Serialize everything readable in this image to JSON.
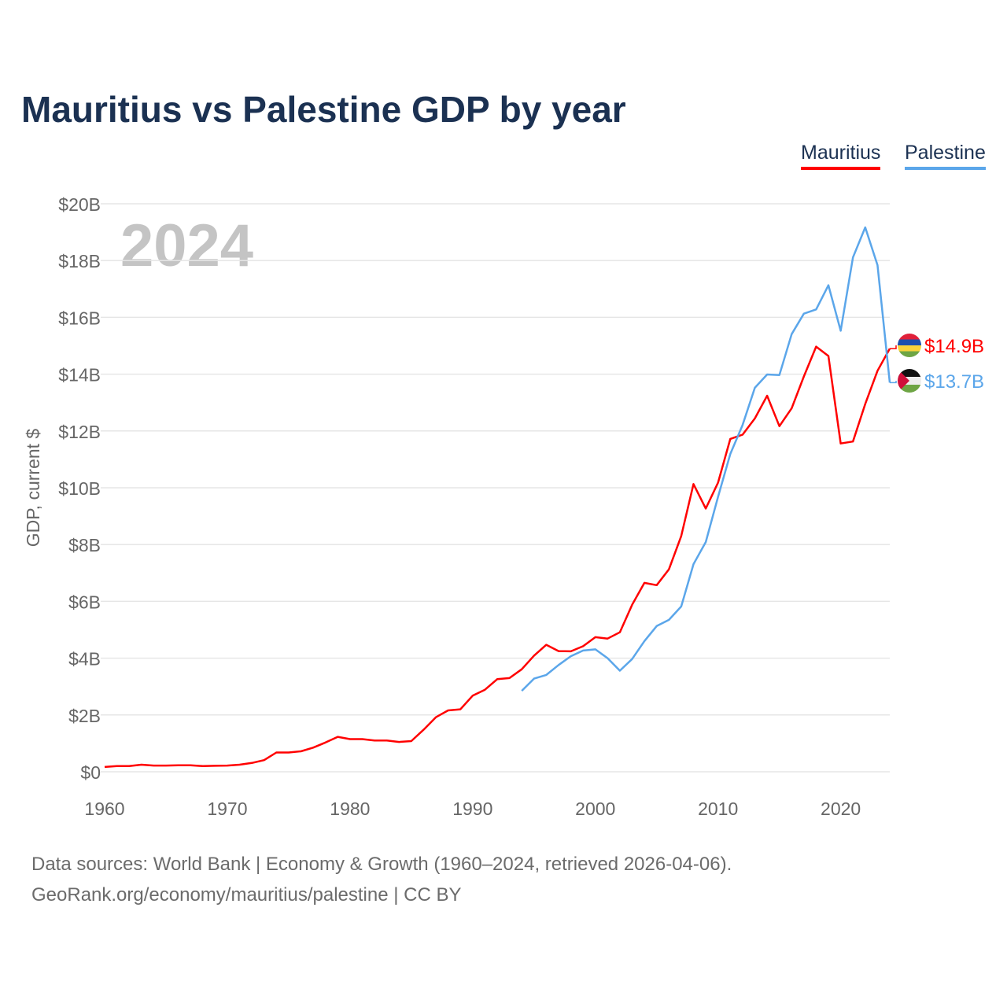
{
  "chart_data": {
    "type": "line",
    "title": "Mauritius vs Palestine GDP by year",
    "xlabel": "",
    "ylabel": "GDP, current $",
    "xlim": [
      1960,
      2024
    ],
    "ylim": [
      0,
      20
    ],
    "x_ticks": [
      "1960",
      "1970",
      "1980",
      "1990",
      "2000",
      "2010",
      "2020"
    ],
    "y_ticks": [
      "$0",
      "$2B",
      "$4B",
      "$6B",
      "$8B",
      "$10B",
      "$12B",
      "$14B",
      "$16B",
      "$18B",
      "$20B"
    ],
    "year_label": "2024",
    "grid": true,
    "legend_position": "top-right",
    "series": [
      {
        "name": "Mauritius",
        "color": "#ff0000",
        "start_year": 1960,
        "end_label": "$14.9B",
        "flag": "mauritius",
        "values": [
          0.17,
          0.2,
          0.2,
          0.25,
          0.22,
          0.22,
          0.23,
          0.23,
          0.2,
          0.21,
          0.22,
          0.25,
          0.31,
          0.41,
          0.68,
          0.68,
          0.72,
          0.85,
          1.03,
          1.23,
          1.15,
          1.15,
          1.1,
          1.1,
          1.05,
          1.08,
          1.48,
          1.92,
          2.16,
          2.2,
          2.68,
          2.89,
          3.26,
          3.3,
          3.61,
          4.09,
          4.47,
          4.25,
          4.24,
          4.42,
          4.74,
          4.69,
          4.91,
          5.88,
          6.65,
          6.57,
          7.13,
          8.3,
          10.13,
          9.27,
          10.18,
          11.72,
          11.87,
          12.44,
          13.24,
          12.17,
          12.8,
          13.92,
          14.97,
          14.64,
          11.56,
          11.63,
          12.95,
          14.12,
          14.9
        ]
      },
      {
        "name": "Palestine",
        "color": "#5ba6ea",
        "start_year": 1994,
        "end_label": "$13.7B",
        "flag": "palestine",
        "values": [
          2.85,
          3.28,
          3.41,
          3.76,
          4.07,
          4.27,
          4.31,
          4.0,
          3.56,
          3.97,
          4.6,
          5.13,
          5.35,
          5.82,
          7.31,
          8.09,
          9.68,
          11.19,
          12.21,
          13.52,
          13.99,
          13.97,
          15.41,
          16.13,
          16.28,
          17.13,
          15.53,
          18.11,
          19.17,
          17.84,
          13.7
        ]
      }
    ]
  },
  "footer": {
    "line1": "Data sources: World Bank | Economy & Growth (1960–2024, retrieved 2026-04-06).",
    "line2": "GeoRank.org/economy/mauritius/palestine | CC BY"
  }
}
